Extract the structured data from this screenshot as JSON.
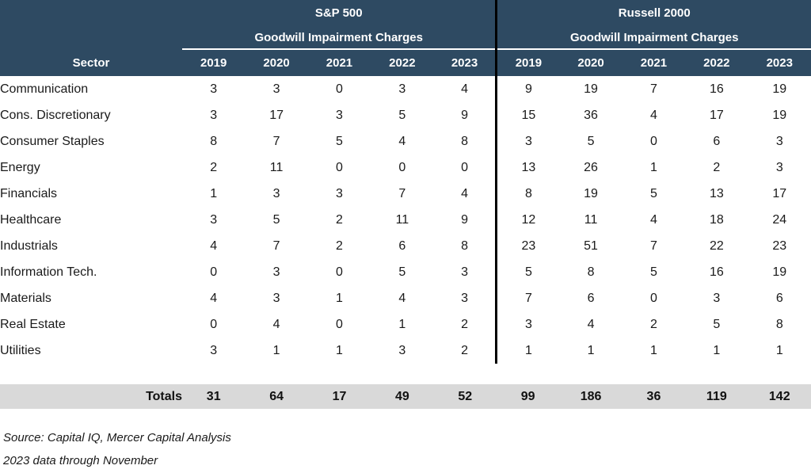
{
  "table": {
    "sector_header": "Sector",
    "groups": [
      {
        "title": "S&P 500",
        "subtitle": "Goodwill Impairment Charges",
        "years": [
          "2019",
          "2020",
          "2021",
          "2022",
          "2023"
        ]
      },
      {
        "title": "Russell 2000",
        "subtitle": "Goodwill Impairment Charges",
        "years": [
          "2019",
          "2020",
          "2021",
          "2022",
          "2023"
        ]
      }
    ],
    "rows": [
      {
        "sector": "Communication",
        "sp500": [
          3,
          3,
          0,
          3,
          4
        ],
        "russell2000": [
          9,
          19,
          7,
          16,
          19
        ]
      },
      {
        "sector": "Cons. Discretionary",
        "sp500": [
          3,
          17,
          3,
          5,
          9
        ],
        "russell2000": [
          15,
          36,
          4,
          17,
          19
        ]
      },
      {
        "sector": "Consumer Staples",
        "sp500": [
          8,
          7,
          5,
          4,
          8
        ],
        "russell2000": [
          3,
          5,
          0,
          6,
          3
        ]
      },
      {
        "sector": "Energy",
        "sp500": [
          2,
          11,
          0,
          0,
          0
        ],
        "russell2000": [
          13,
          26,
          1,
          2,
          3
        ]
      },
      {
        "sector": "Financials",
        "sp500": [
          1,
          3,
          3,
          7,
          4
        ],
        "russell2000": [
          8,
          19,
          5,
          13,
          17
        ]
      },
      {
        "sector": "Healthcare",
        "sp500": [
          3,
          5,
          2,
          11,
          9
        ],
        "russell2000": [
          12,
          11,
          4,
          18,
          24
        ]
      },
      {
        "sector": "Industrials",
        "sp500": [
          4,
          7,
          2,
          6,
          8
        ],
        "russell2000": [
          23,
          51,
          7,
          22,
          23
        ]
      },
      {
        "sector": "Information Tech.",
        "sp500": [
          0,
          3,
          0,
          5,
          3
        ],
        "russell2000": [
          5,
          8,
          5,
          16,
          19
        ]
      },
      {
        "sector": "Materials",
        "sp500": [
          4,
          3,
          1,
          4,
          3
        ],
        "russell2000": [
          7,
          6,
          0,
          3,
          6
        ]
      },
      {
        "sector": "Real Estate",
        "sp500": [
          0,
          4,
          0,
          1,
          2
        ],
        "russell2000": [
          3,
          4,
          2,
          5,
          8
        ]
      },
      {
        "sector": "Utilities",
        "sp500": [
          3,
          1,
          1,
          3,
          2
        ],
        "russell2000": [
          1,
          1,
          1,
          1,
          1
        ]
      }
    ],
    "totals_label": "Totals",
    "totals": {
      "sp500": [
        31,
        64,
        17,
        49,
        52
      ],
      "russell2000": [
        99,
        186,
        36,
        119,
        142
      ]
    }
  },
  "footer": {
    "source": "Source: Capital IQ, Mercer Capital Analysis",
    "note": "2023 data through November"
  },
  "colors": {
    "header_bg": "#2E4A62",
    "header_text": "#FFFFFF",
    "totals_bg": "#D9D9D9",
    "divider": "#000000"
  },
  "chart_data": {
    "type": "table",
    "title": "Goodwill Impairment Charges by Sector, S&P 500 vs Russell 2000",
    "column_groups": [
      "S&P 500 Goodwill Impairment Charges",
      "Russell 2000 Goodwill Impairment Charges"
    ],
    "categories": [
      "Communication",
      "Cons. Discretionary",
      "Consumer Staples",
      "Energy",
      "Financials",
      "Healthcare",
      "Industrials",
      "Information Tech.",
      "Materials",
      "Real Estate",
      "Utilities"
    ],
    "x": [
      "2019",
      "2020",
      "2021",
      "2022",
      "2023"
    ],
    "series": [
      {
        "name": "S&P 500 - Communication",
        "values": [
          3,
          3,
          0,
          3,
          4
        ]
      },
      {
        "name": "S&P 500 - Cons. Discretionary",
        "values": [
          3,
          17,
          3,
          5,
          9
        ]
      },
      {
        "name": "S&P 500 - Consumer Staples",
        "values": [
          8,
          7,
          5,
          4,
          8
        ]
      },
      {
        "name": "S&P 500 - Energy",
        "values": [
          2,
          11,
          0,
          0,
          0
        ]
      },
      {
        "name": "S&P 500 - Financials",
        "values": [
          1,
          3,
          3,
          7,
          4
        ]
      },
      {
        "name": "S&P 500 - Healthcare",
        "values": [
          3,
          5,
          2,
          11,
          9
        ]
      },
      {
        "name": "S&P 500 - Industrials",
        "values": [
          4,
          7,
          2,
          6,
          8
        ]
      },
      {
        "name": "S&P 500 - Information Tech.",
        "values": [
          0,
          3,
          0,
          5,
          3
        ]
      },
      {
        "name": "S&P 500 - Materials",
        "values": [
          4,
          3,
          1,
          4,
          3
        ]
      },
      {
        "name": "S&P 500 - Real Estate",
        "values": [
          0,
          4,
          0,
          1,
          2
        ]
      },
      {
        "name": "S&P 500 - Utilities",
        "values": [
          3,
          1,
          1,
          3,
          2
        ]
      },
      {
        "name": "S&P 500 - Totals",
        "values": [
          31,
          64,
          17,
          49,
          52
        ]
      },
      {
        "name": "Russell 2000 - Communication",
        "values": [
          9,
          19,
          7,
          16,
          19
        ]
      },
      {
        "name": "Russell 2000 - Cons. Discretionary",
        "values": [
          15,
          36,
          4,
          17,
          19
        ]
      },
      {
        "name": "Russell 2000 - Consumer Staples",
        "values": [
          3,
          5,
          0,
          6,
          3
        ]
      },
      {
        "name": "Russell 2000 - Energy",
        "values": [
          13,
          26,
          1,
          2,
          3
        ]
      },
      {
        "name": "Russell 2000 - Financials",
        "values": [
          8,
          19,
          5,
          13,
          17
        ]
      },
      {
        "name": "Russell 2000 - Healthcare",
        "values": [
          12,
          11,
          4,
          18,
          24
        ]
      },
      {
        "name": "Russell 2000 - Industrials",
        "values": [
          23,
          51,
          7,
          22,
          23
        ]
      },
      {
        "name": "Russell 2000 - Information Tech.",
        "values": [
          5,
          8,
          5,
          16,
          19
        ]
      },
      {
        "name": "Russell 2000 - Materials",
        "values": [
          7,
          6,
          0,
          3,
          6
        ]
      },
      {
        "name": "Russell 2000 - Real Estate",
        "values": [
          3,
          4,
          2,
          5,
          8
        ]
      },
      {
        "name": "Russell 2000 - Utilities",
        "values": [
          1,
          1,
          1,
          1,
          1
        ]
      },
      {
        "name": "Russell 2000 - Totals",
        "values": [
          99,
          186,
          36,
          119,
          142
        ]
      }
    ],
    "annotations": [
      "Source: Capital IQ, Mercer Capital Analysis",
      "2023 data through November"
    ]
  }
}
